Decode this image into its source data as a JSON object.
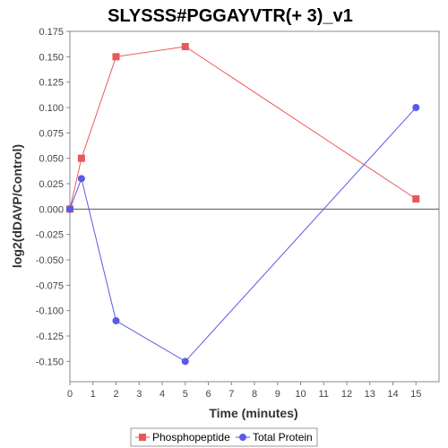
{
  "chart_data": {
    "type": "line",
    "title": "SLYSSS#PGGAYVTR(+ 3)_v1",
    "xlabel": "Time (minutes)",
    "ylabel": "log2(dDAVP/Control)",
    "xlim": [
      0,
      16
    ],
    "ylim": [
      -0.17,
      0.175
    ],
    "x_ticks": [
      0,
      1,
      2,
      3,
      4,
      5,
      6,
      7,
      8,
      9,
      10,
      11,
      12,
      13,
      14,
      15
    ],
    "y_ticks": [
      0.175,
      0.15,
      0.125,
      0.1,
      0.075,
      0.05,
      0.025,
      0.0,
      -0.025,
      -0.05,
      -0.075,
      -0.1,
      -0.125,
      -0.15
    ],
    "y_tick_labels": [
      "0.175",
      "0.150",
      "0.125",
      "0.100",
      "0.075",
      "0.050",
      "0.025",
      "0.000",
      "-0.025",
      "-0.050",
      "-0.075",
      "-0.100",
      "-0.125",
      "-0.150"
    ],
    "grid": false,
    "legend_position": "bottom-center",
    "series": [
      {
        "name": "Phosphopeptide",
        "color": "#e8575a",
        "marker": "square",
        "points": [
          [
            0,
            0.0
          ],
          [
            0.5,
            0.05
          ],
          [
            2,
            0.15
          ],
          [
            5,
            0.16
          ],
          [
            15,
            0.01
          ]
        ]
      },
      {
        "name": "Total Protein",
        "color": "#5a5ae8",
        "marker": "circle",
        "points": [
          [
            0,
            0.0
          ],
          [
            0.5,
            0.03
          ],
          [
            2,
            -0.11
          ],
          [
            5,
            -0.15
          ],
          [
            15,
            0.1
          ]
        ]
      }
    ]
  }
}
